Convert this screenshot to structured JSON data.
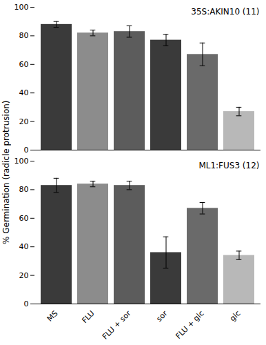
{
  "chart_data": [
    {
      "type": "bar",
      "title": "35S:AKIN10 (11)",
      "ylabel": "% Germination (radicle protrusion)",
      "categories": [
        "MS",
        "FLU",
        "FLU + sor",
        "sor",
        "FLU + glc",
        "glc"
      ],
      "values": [
        88,
        82,
        83,
        77,
        67,
        27
      ],
      "errors": [
        2,
        2,
        4,
        4,
        8,
        3
      ],
      "colors": [
        "#3a3a3a",
        "#8c8c8c",
        "#5c5c5c",
        "#3a3a3a",
        "#6a6a6a",
        "#b8b8b8"
      ],
      "ylim": [
        0,
        100
      ],
      "yticks": [
        0,
        20,
        40,
        60,
        80,
        100
      ],
      "grid": false,
      "tick_labels": "y"
    },
    {
      "type": "bar",
      "title": "ML1:FUS3 (12)",
      "categories": [
        "MS",
        "FLU",
        "FLU + sor",
        "sor",
        "FLU + glc",
        "glc"
      ],
      "values": [
        83,
        84,
        83,
        36,
        67,
        34
      ],
      "errors": [
        5,
        2,
        3,
        11,
        4,
        3
      ],
      "colors": [
        "#3a3a3a",
        "#8c8c8c",
        "#5c5c5c",
        "#3a3a3a",
        "#6a6a6a",
        "#b8b8b8"
      ],
      "ylim": [
        0,
        100
      ],
      "yticks": [
        0,
        20,
        40,
        60,
        80,
        100
      ],
      "grid": false
    }
  ]
}
